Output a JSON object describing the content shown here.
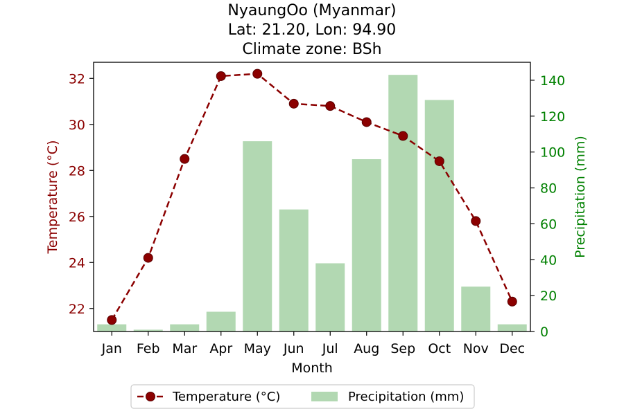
{
  "chart_data": {
    "type": "bar+line",
    "title_lines": [
      "NyaungOo (Myanmar)",
      "Lat: 21.20, Lon: 94.90",
      "Climate zone: BSh"
    ],
    "categories": [
      "Jan",
      "Feb",
      "Mar",
      "Apr",
      "May",
      "Jun",
      "Jul",
      "Aug",
      "Sep",
      "Oct",
      "Nov",
      "Dec"
    ],
    "xlabel": "Month",
    "temperature": {
      "name": "Temperature (°C)",
      "axis_label": "Temperature (°C)",
      "color": "#8b0000",
      "values": [
        21.5,
        24.2,
        28.5,
        32.1,
        32.2,
        30.9,
        30.8,
        30.1,
        29.5,
        28.4,
        25.8,
        22.3
      ],
      "ylim": [
        21.0,
        32.7
      ],
      "ticks": [
        22,
        24,
        26,
        28,
        30,
        32
      ],
      "tick_labels": [
        "22",
        "24",
        "26",
        "28",
        "30",
        "32"
      ]
    },
    "precipitation": {
      "name": "Precipitation (mm)",
      "axis_label": "Precipitation (mm)",
      "color": "#008000",
      "bar_color": "#b2d8b2",
      "values": [
        4,
        1,
        4,
        11,
        106,
        68,
        38,
        96,
        143,
        129,
        25,
        4
      ],
      "ylim": [
        0,
        150
      ],
      "ticks": [
        0,
        20,
        40,
        60,
        80,
        100,
        120,
        140
      ],
      "tick_labels": [
        "0",
        "20",
        "40",
        "60",
        "80",
        "100",
        "120",
        "140"
      ]
    },
    "legend": {
      "position": "bottom-center",
      "entries": [
        "Temperature (°C)",
        "Precipitation (mm)"
      ]
    },
    "grid": false
  }
}
